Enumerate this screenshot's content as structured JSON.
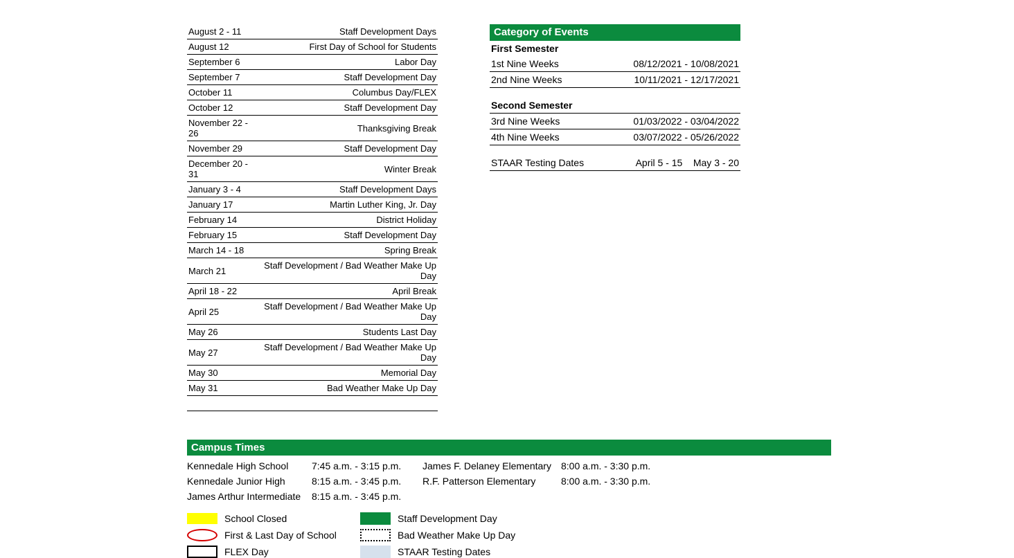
{
  "colors": {
    "header_green": "#0b8b3e",
    "legend_yellow": "#ffff00",
    "legend_red": "#d40000",
    "legend_lightblue": "#d6e1ed",
    "border": "#000000"
  },
  "dates_table": {
    "rows": [
      {
        "date": "August 2 - 11",
        "event": "Staff Development Days"
      },
      {
        "date": "August 12",
        "event": "First Day of School for Students"
      },
      {
        "date": "September 6",
        "event": "Labor Day"
      },
      {
        "date": "September 7",
        "event": "Staff Development Day"
      },
      {
        "date": "October 11",
        "event": "Columbus Day/FLEX"
      },
      {
        "date": "October 12",
        "event": "Staff Development Day"
      },
      {
        "date": "November 22 - 26",
        "event": "Thanksgiving Break"
      },
      {
        "date": "November 29",
        "event": "Staff Development Day"
      },
      {
        "date": "December 20 - 31",
        "event": "Winter Break"
      },
      {
        "date": "January 3 - 4",
        "event": "Staff Development Days"
      },
      {
        "date": "January 17",
        "event": "Martin Luther King, Jr. Day"
      },
      {
        "date": "February 14",
        "event": "District Holiday"
      },
      {
        "date": "February 15",
        "event": "Staff Development Day"
      },
      {
        "date": "March 14 - 18",
        "event": "Spring Break"
      },
      {
        "date": "March 21",
        "event": "Staff Development / Bad Weather Make Up Day"
      },
      {
        "date": "April 18 - 22",
        "event": "April Break"
      },
      {
        "date": "April 25",
        "event": "Staff Development / Bad Weather Make Up Day"
      },
      {
        "date": "May 26",
        "event": "Students Last Day"
      },
      {
        "date": "May 27",
        "event": "Staff Development / Bad Weather Make Up Day"
      },
      {
        "date": "May 30",
        "event": "Memorial Day"
      },
      {
        "date": "May 31",
        "event": "Bad Weather Make Up Day"
      }
    ]
  },
  "category": {
    "title": "Category of Events",
    "semester1_header": "First Semester",
    "sem1_rows": [
      {
        "label": "1st Nine Weeks",
        "range": "08/12/2021 - 10/08/2021"
      },
      {
        "label": "2nd Nine Weeks",
        "range": "10/11/2021 - 12/17/2021"
      }
    ],
    "semester2_header": "Second Semester",
    "sem2_rows": [
      {
        "label": "3rd Nine Weeks",
        "range": "01/03/2022 - 03/04/2022"
      },
      {
        "label": "4th Nine Weeks",
        "range": "03/07/2022 - 05/26/2022"
      }
    ],
    "staar_label": "STAAR Testing Dates",
    "staar_range1": "April 5 - 15",
    "staar_range2": "May 3 - 20"
  },
  "campus_times": {
    "title": "Campus Times",
    "schools": [
      {
        "name": "Kennedale High School",
        "hours": "7:45 a.m. - 3:15 p.m."
      },
      {
        "name": "James F. Delaney Elementary",
        "hours": "8:00 a.m. - 3:30 p.m."
      },
      {
        "name": "Kennedale Junior High",
        "hours": "8:15 a.m. - 3:45 p.m."
      },
      {
        "name": "R.F. Patterson Elementary",
        "hours": "8:00 a.m. - 3:30 p.m."
      },
      {
        "name": "James Arthur Intermediate",
        "hours": "8:15 a.m. - 3:45 p.m."
      }
    ]
  },
  "legend": {
    "items": [
      {
        "key": "school-closed",
        "label": "School Closed",
        "swatch": "swatch-yellow"
      },
      {
        "key": "staff-dev",
        "label": "Staff Development Day",
        "swatch": "swatch-green"
      },
      {
        "key": "first-last",
        "label": "First & Last Day of School",
        "swatch": "swatch-oval"
      },
      {
        "key": "bad-weather",
        "label": "Bad Weather Make Up Day",
        "swatch": "swatch-dotted"
      },
      {
        "key": "flex",
        "label": "FLEX Day",
        "swatch": "swatch-outline"
      },
      {
        "key": "staar",
        "label": "STAAR Testing Dates",
        "swatch": "swatch-lightblue"
      }
    ]
  }
}
